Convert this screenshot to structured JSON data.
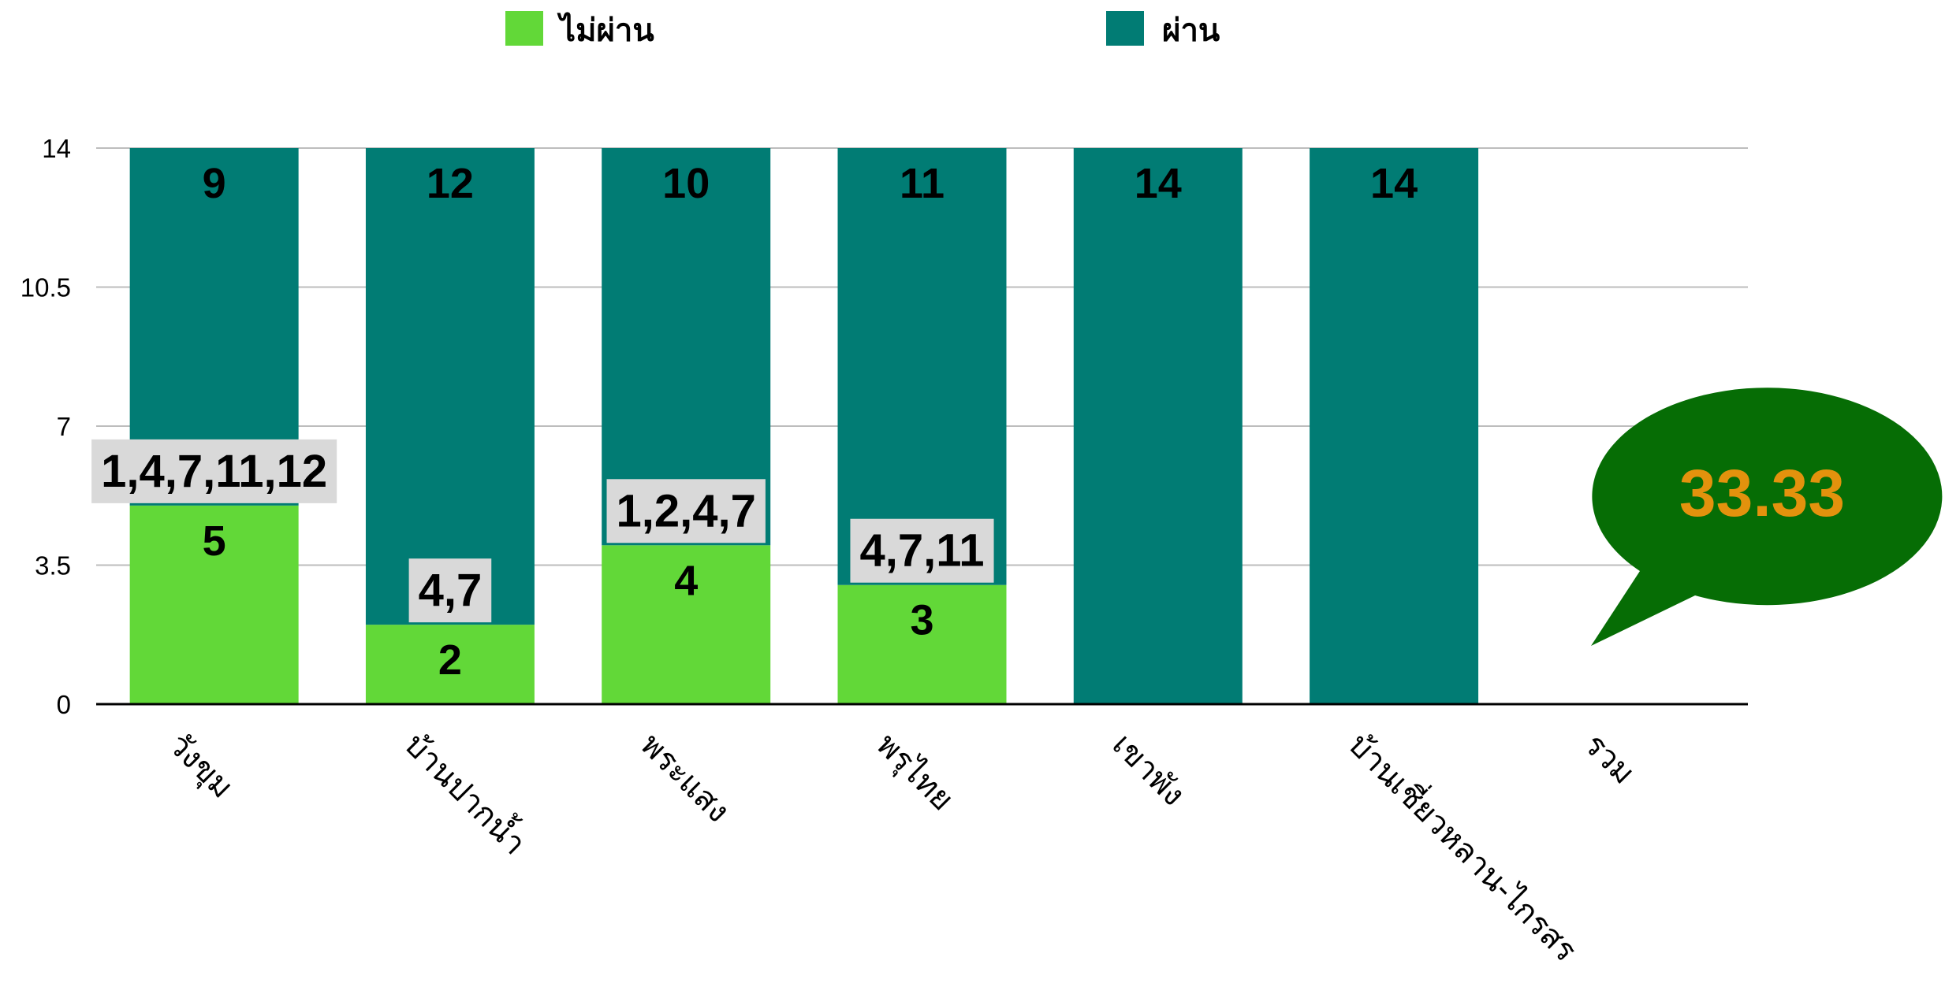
{
  "colors": {
    "fail": "#62d838",
    "pass": "#017c74",
    "grid": "#bdbdbd",
    "axis": "#000000",
    "label_box": "#d9d9d9",
    "callout_fill": "#066d05",
    "callout_text": "#e3920d"
  },
  "legend": [
    {
      "name": "ไม่ผ่าน",
      "color_key": "fail"
    },
    {
      "name": "ผ่าน",
      "color_key": "pass"
    }
  ],
  "callout": {
    "text": "33.33"
  },
  "chart_data": {
    "type": "bar",
    "stacked": true,
    "categories": [
      "วังขุม",
      "บ้านปากน้ำ",
      "พระแสง",
      "พรุไทย",
      "เขาพัง",
      "บ้านเชี่ยวหลาน-ไกรสร",
      "รวม"
    ],
    "series": [
      {
        "name": "ไม่ผ่าน",
        "values": [
          5,
          2,
          4,
          3,
          0,
          0,
          null
        ]
      },
      {
        "name": "ผ่าน",
        "values": [
          9,
          12,
          10,
          11,
          14,
          14,
          null
        ]
      }
    ],
    "failed_items": [
      "1,4,7,11,12",
      "4,7",
      "1,2,4,7",
      "4,7,11",
      "",
      "",
      ""
    ],
    "yticks": [
      0,
      3.5,
      7,
      10.5,
      14
    ],
    "ytick_labels": [
      "0",
      "3.5",
      "7",
      "10.5",
      "14"
    ],
    "ylim": [
      0,
      14
    ],
    "grid": true,
    "legend_position": "top"
  }
}
